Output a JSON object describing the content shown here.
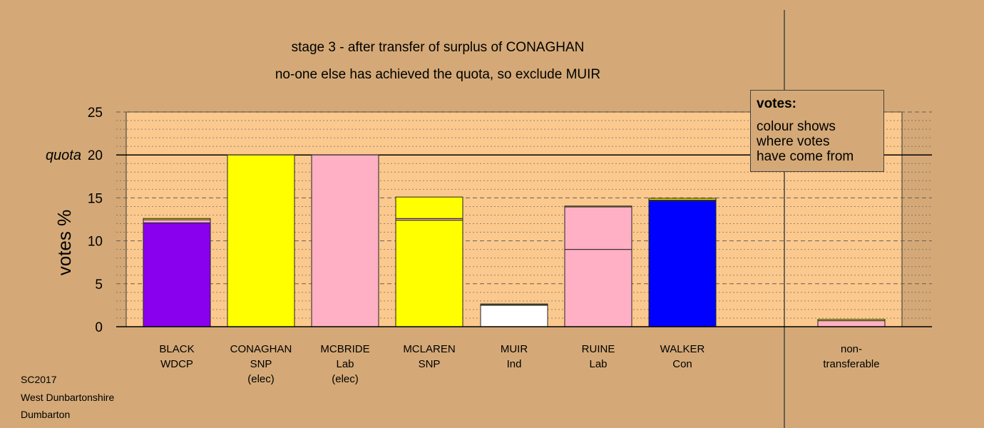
{
  "title_line1": "stage 3 - after transfer of surplus of CONAGHAN",
  "title_line2": "no-one else has achieved the quota, so exclude MUIR",
  "legend": {
    "title": "votes:",
    "lines": [
      "colour shows",
      "where votes",
      "have come from"
    ]
  },
  "footer": [
    "SC2017",
    "West Dunbartonshire",
    "Dumbarton"
  ],
  "colors": {
    "background": "#d4a977",
    "plot_background": "#fbc98e",
    "WDCP": "#8800ee",
    "SNP": "#ffff00",
    "Lab": "#ffb0c4",
    "Ind": "#ffffff",
    "Con": "#0000ff"
  },
  "chart_data": {
    "type": "bar",
    "stacked": true,
    "ylabel": "votes %",
    "ylim": [
      0,
      25
    ],
    "yticks": [
      0,
      5,
      10,
      15,
      20,
      25
    ],
    "quota": 20,
    "quota_label": "quota",
    "grid": "dotted minor lines every 1%, dashed major lines every 5%",
    "categories": [
      {
        "lines": [
          "BLACK",
          "WDCP"
        ],
        "segments": [
          {
            "party": "WDCP",
            "value": 12.1
          },
          {
            "party": "Lab",
            "value": 0.35
          },
          {
            "party": "SNP",
            "value": 0.15
          }
        ]
      },
      {
        "lines": [
          "CONAGHAN",
          "SNP",
          "(elec)"
        ],
        "segments": [
          {
            "party": "SNP",
            "value": 20.0
          }
        ]
      },
      {
        "lines": [
          "MCBRIDE",
          "Lab",
          "(elec)"
        ],
        "segments": [
          {
            "party": "Lab",
            "value": 20.0
          }
        ]
      },
      {
        "lines": [
          "MCLAREN",
          "SNP"
        ],
        "segments": [
          {
            "party": "SNP",
            "value": 12.4
          },
          {
            "party": "Lab",
            "value": 0.2
          },
          {
            "party": "SNP",
            "value": 2.5
          }
        ]
      },
      {
        "lines": [
          "MUIR",
          "Ind"
        ],
        "segments": [
          {
            "party": "Ind",
            "value": 2.5
          },
          {
            "party": "Lab",
            "value": 0.05
          },
          {
            "party": "SNP",
            "value": 0.1
          }
        ]
      },
      {
        "lines": [
          "RUINE",
          "Lab"
        ],
        "segments": [
          {
            "party": "Lab",
            "value": 9.0
          },
          {
            "party": "Lab",
            "value": 4.95
          },
          {
            "party": "SNP",
            "value": 0.1
          }
        ]
      },
      {
        "lines": [
          "WALKER",
          "Con"
        ],
        "segments": [
          {
            "party": "Con",
            "value": 14.65
          },
          {
            "party": "Lab",
            "value": 0.1
          },
          {
            "party": "SNP",
            "value": 0.2
          }
        ]
      },
      {
        "lines": [
          "non-",
          "transferable"
        ],
        "segments": [
          {
            "party": "Lab",
            "value": 0.7
          },
          {
            "party": "SNP",
            "value": 0.15
          }
        ]
      }
    ]
  }
}
